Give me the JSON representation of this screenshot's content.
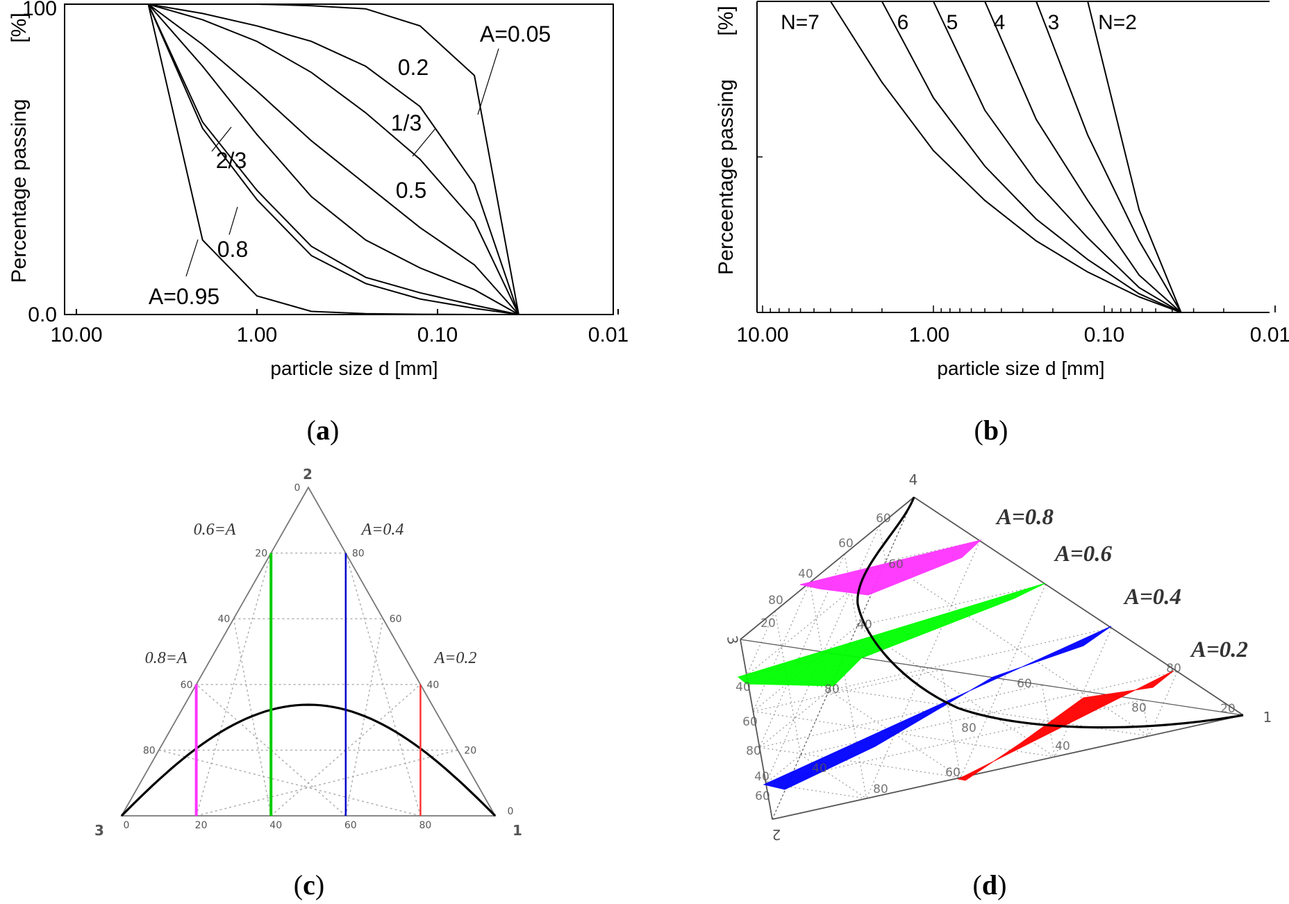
{
  "chart_data": [
    {
      "type": "line",
      "panel": "a",
      "caption_letter": "a",
      "xscale": "log-reversed",
      "xlim": [
        10.0,
        0.01
      ],
      "xticks": [
        "10.00",
        "1.00",
        "0.10",
        "0.01"
      ],
      "yticks": [
        "100",
        "0.0"
      ],
      "ylim": [
        0,
        100
      ],
      "xlabel": "particle size d [mm]",
      "ylabel": "Percentage passing",
      "yunit": "[%]",
      "x": [
        4.0,
        2.0,
        1.0,
        0.5,
        0.25,
        0.125,
        0.0625,
        0.0355
      ],
      "series": [
        {
          "name": "A=0.05",
          "label": "A=0.05",
          "values": [
            100,
            100,
            100,
            99.5,
            98.5,
            93,
            77,
            0
          ]
        },
        {
          "name": "0.2",
          "label": "0.2",
          "values": [
            100,
            97,
            93,
            88,
            80,
            67,
            42,
            0
          ]
        },
        {
          "name": "1/3",
          "label": "1/3",
          "values": [
            100,
            95,
            88,
            78,
            65,
            50,
            30,
            0
          ]
        },
        {
          "name": "0.5",
          "label": "0.5",
          "values": [
            100,
            87,
            72,
            56,
            42,
            28,
            16,
            0
          ]
        },
        {
          "name": "2/3",
          "label": "2/3",
          "values": [
            100,
            80,
            58,
            38,
            24,
            15,
            8,
            0
          ]
        },
        {
          "name": "0.8",
          "label": "0.8",
          "values": [
            100,
            62,
            40,
            22,
            12,
            7,
            3,
            0
          ]
        },
        {
          "name": "0.8b",
          "label": "",
          "values": [
            100,
            60,
            37,
            19,
            10,
            5,
            2,
            0
          ]
        },
        {
          "name": "A=0.95",
          "label": "A=0.95",
          "values": [
            100,
            24,
            6,
            1,
            0.3,
            0.1,
            0,
            0
          ]
        }
      ]
    },
    {
      "type": "line",
      "panel": "b",
      "caption_letter": "b",
      "xscale": "log-reversed",
      "xlim": [
        10.0,
        0.01
      ],
      "xticks": [
        "10.00",
        "1.00",
        "0.10",
        "0.01"
      ],
      "ylim": [
        0,
        100
      ],
      "xlabel": "particle size d [mm]",
      "ylabel": "Perceentage passing",
      "yunit": "[%]",
      "series": [
        {
          "name": "N=7",
          "label": "N=7",
          "x": [
            4.0,
            2.0,
            1.0,
            0.5,
            0.25,
            0.125,
            0.0625,
            0.0355
          ],
          "values": [
            100,
            74,
            52,
            36,
            23,
            13,
            5,
            0
          ]
        },
        {
          "name": "6",
          "label": "6",
          "x": [
            2.0,
            1.0,
            0.5,
            0.25,
            0.125,
            0.0625,
            0.0355
          ],
          "values": [
            100,
            69,
            47,
            30,
            17,
            6,
            0
          ]
        },
        {
          "name": "5",
          "label": "5",
          "x": [
            1.0,
            0.5,
            0.25,
            0.125,
            0.0625,
            0.0355
          ],
          "values": [
            100,
            65,
            42,
            24,
            8,
            0
          ]
        },
        {
          "name": "4",
          "label": "4",
          "x": [
            0.5,
            0.25,
            0.125,
            0.0625,
            0.0355
          ],
          "values": [
            100,
            62,
            36,
            12,
            0
          ]
        },
        {
          "name": "3",
          "label": "3",
          "x": [
            0.25,
            0.125,
            0.0625,
            0.0355
          ],
          "values": [
            100,
            57,
            23,
            0
          ]
        },
        {
          "name": "N=2",
          "label": "N=2",
          "x": [
            0.125,
            0.0625,
            0.0355
          ],
          "values": [
            100,
            33,
            0
          ]
        }
      ]
    },
    {
      "type": "ternary",
      "panel": "c",
      "caption_letter": "c",
      "vertices": [
        "2",
        "3",
        "1"
      ],
      "apex_zero": "0",
      "right_zero": "0",
      "left_ticks": [
        "20",
        "40",
        "60",
        "80"
      ],
      "right_ticks": [
        "80",
        "60",
        "40",
        "20"
      ],
      "bottom_ticks": [
        "0",
        "20",
        "40",
        "60",
        "80"
      ],
      "series": [
        {
          "name": "0.8=A",
          "label": "0.8=A",
          "color": "#ff33ff",
          "x": 20
        },
        {
          "name": "0.6=A",
          "label": "0.6=A",
          "color": "#00cc00",
          "x": 40
        },
        {
          "name": "A=0.4",
          "label": "A=0.4",
          "color": "#0000cc",
          "x": 60
        },
        {
          "name": "A=0.2",
          "label": "A=0.2",
          "color": "#ff3333",
          "x": 80
        }
      ]
    },
    {
      "type": "tetrahedral",
      "panel": "d",
      "caption_letter": "d",
      "vertices": [
        "4",
        "3",
        "2",
        "1"
      ],
      "tick_labels": [
        "60",
        "60",
        "40",
        "80",
        "20",
        "40",
        "60",
        "80",
        "40",
        "60",
        "60",
        "40",
        "80",
        "40",
        "80",
        "60",
        "40",
        "80",
        "80",
        "20",
        "60",
        "80"
      ],
      "series": [
        {
          "name": "A=0.8",
          "label": "A=0.8",
          "color": "#ff33ff"
        },
        {
          "name": "A=0.6",
          "label": "A=0.6",
          "color": "#00ff00"
        },
        {
          "name": "A=0.4",
          "label": "A=0.4",
          "color": "#0000ff"
        },
        {
          "name": "A=0.2",
          "label": "A=0.2",
          "color": "#ff0000"
        }
      ]
    }
  ],
  "captions": {
    "a": "a",
    "b": "b",
    "c": "c",
    "d": "d"
  }
}
